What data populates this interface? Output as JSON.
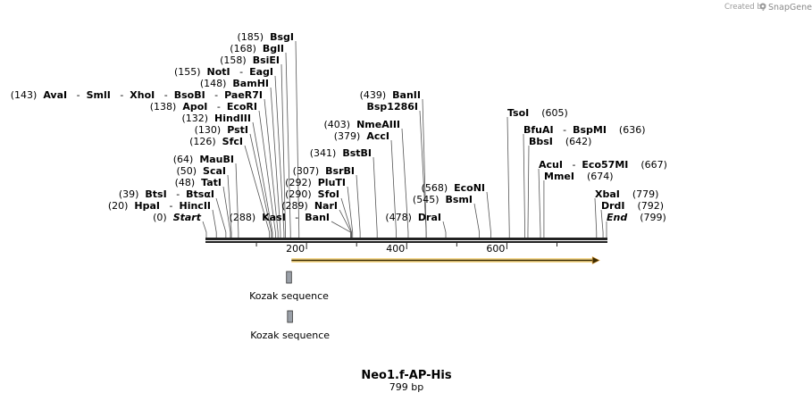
{
  "watermark": {
    "prefix": "Created by",
    "brand": "SnapGene"
  },
  "sequence": {
    "name": "Neo1.f-AP-His",
    "length_label": "799 bp",
    "length": 799
  },
  "axis_ticks": [
    "200",
    "400",
    "600"
  ],
  "features": [
    {
      "name": "Kozak sequence",
      "start": 160,
      "end": 170
    },
    {
      "name": "Kozak sequence",
      "start": 162,
      "end": 172
    }
  ],
  "orf": {
    "start": 170,
    "end": 785,
    "color": "#e8a33a"
  },
  "sites": [
    {
      "pos": "(185)",
      "names": [
        "BsgI"
      ],
      "cut": 185
    },
    {
      "pos": "(168)",
      "names": [
        "BglI"
      ],
      "cut": 168
    },
    {
      "pos": "(158)",
      "names": [
        "BsiEI"
      ],
      "cut": 158
    },
    {
      "pos": "(155)",
      "names": [
        "NotI",
        "EagI"
      ],
      "cut": 155
    },
    {
      "pos": "(148)",
      "names": [
        "BamHI"
      ],
      "cut": 148
    },
    {
      "pos": "(143)",
      "names": [
        "AvaI",
        "SmlI",
        "XhoI",
        "BsoBI",
        "PaeR7I"
      ],
      "cut": 143
    },
    {
      "pos": "(138)",
      "names": [
        "ApoI",
        "EcoRI"
      ],
      "cut": 138
    },
    {
      "pos": "(132)",
      "names": [
        "HindIII"
      ],
      "cut": 132
    },
    {
      "pos": "(130)",
      "names": [
        "PstI"
      ],
      "cut": 130
    },
    {
      "pos": "(126)",
      "names": [
        "SfcI"
      ],
      "cut": 126
    },
    {
      "pos": "(64)",
      "names": [
        "MauBI"
      ],
      "cut": 64
    },
    {
      "pos": "(50)",
      "names": [
        "ScaI"
      ],
      "cut": 50
    },
    {
      "pos": "(48)",
      "names": [
        "TatI"
      ],
      "cut": 48
    },
    {
      "pos": "(39)",
      "names": [
        "BtsI",
        "BtsαI"
      ],
      "cut": 39
    },
    {
      "pos": "(20)",
      "names": [
        "HpaI",
        "HincII"
      ],
      "cut": 20
    },
    {
      "pos": "(0)",
      "names": [
        "Start"
      ],
      "cut": 0,
      "italic": true
    },
    {
      "pos": "(288)",
      "names": [
        "KasI",
        "BanI"
      ],
      "cut": 288
    },
    {
      "pos": "(289)",
      "names": [
        "NarI"
      ],
      "cut": 289
    },
    {
      "pos": "(290)",
      "names": [
        "SfoI"
      ],
      "cut": 290
    },
    {
      "pos": "(292)",
      "names": [
        "PluTI"
      ],
      "cut": 292
    },
    {
      "pos": "(307)",
      "names": [
        "BsrBI"
      ],
      "cut": 307
    },
    {
      "pos": "(341)",
      "names": [
        "BstBI"
      ],
      "cut": 341
    },
    {
      "pos": "(379)",
      "names": [
        "AccI"
      ],
      "cut": 379
    },
    {
      "pos": "(403)",
      "names": [
        "NmeAIII"
      ],
      "cut": 403
    },
    {
      "pos": "(439)",
      "names": [
        "BanII"
      ],
      "cut": 439
    },
    {
      "pos": "",
      "names": [
        "Bsp1286I"
      ],
      "cut": 439
    },
    {
      "pos": "(478)",
      "names": [
        "DraI"
      ],
      "cut": 478
    },
    {
      "pos": "(545)",
      "names": [
        "BsmI"
      ],
      "cut": 545
    },
    {
      "pos": "(568)",
      "names": [
        "EcoNI"
      ],
      "cut": 568
    },
    {
      "pos": "(605)",
      "names": [
        "TsoI"
      ],
      "cut": 605
    },
    {
      "pos": "(636)",
      "names": [
        "BfuAI",
        "BspMI"
      ],
      "cut": 636
    },
    {
      "pos": "(642)",
      "names": [
        "BbsI"
      ],
      "cut": 642
    },
    {
      "pos": "(667)",
      "names": [
        "AcuI",
        "Eco57MI"
      ],
      "cut": 667
    },
    {
      "pos": "(674)",
      "names": [
        "MmeI"
      ],
      "cut": 674
    },
    {
      "pos": "(779)",
      "names": [
        "XbaI"
      ],
      "cut": 779
    },
    {
      "pos": "(792)",
      "names": [
        "DrdI"
      ],
      "cut": 792
    },
    {
      "pos": "(799)",
      "names": [
        "End"
      ],
      "cut": 799,
      "italic": true
    }
  ]
}
